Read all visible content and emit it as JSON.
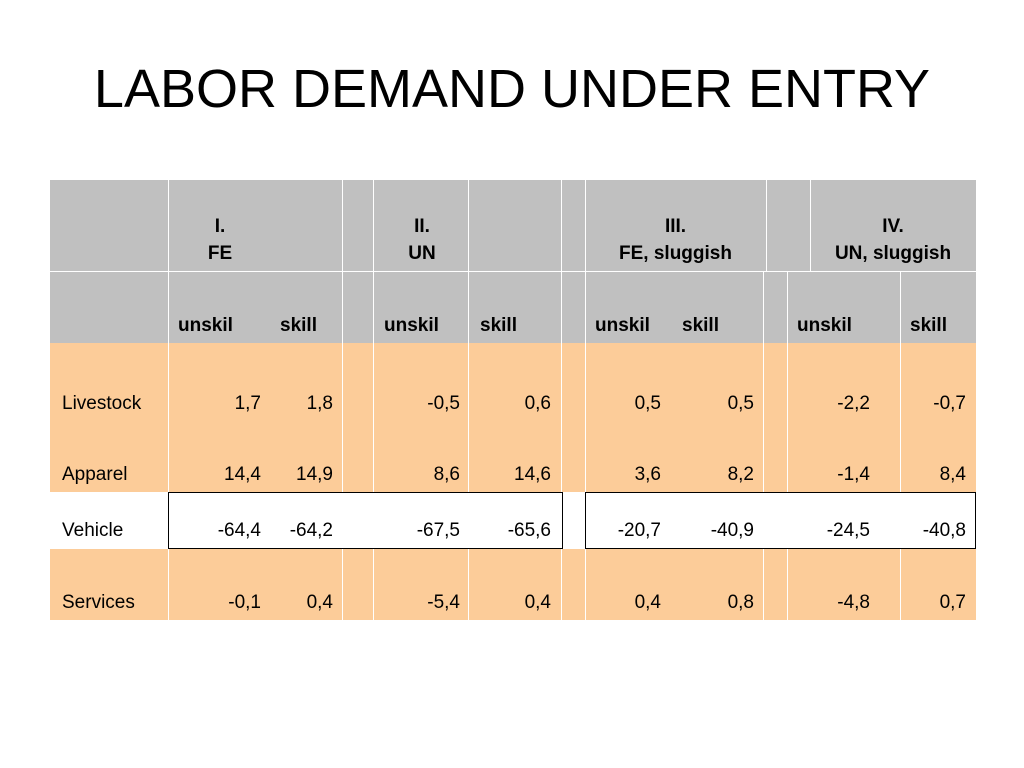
{
  "title": "LABOR DEMAND UNDER ENTRY",
  "groups": [
    {
      "line1": "I.",
      "line2": "FE"
    },
    {
      "line1": "II.",
      "line2": "UN"
    },
    {
      "line1": "III.",
      "line2": "FE, sluggish"
    },
    {
      "line1": "IV.",
      "line2": "UN, sluggish"
    }
  ],
  "subheaders": [
    "unskil",
    "skill",
    "unskil",
    "skill",
    "unskil",
    "skill",
    "unskil",
    "skill"
  ],
  "rows": [
    {
      "label": "Livestock",
      "values": [
        "1,7",
        "1,8",
        "-0,5",
        "0,6",
        "0,5",
        "0,5",
        "-2,2",
        "-0,7"
      ]
    },
    {
      "label": "Apparel",
      "values": [
        "14,4",
        "14,9",
        "8,6",
        "14,6",
        "3,6",
        "8,2",
        "-1,4",
        "8,4"
      ]
    },
    {
      "label": "Vehicle",
      "values": [
        "-64,4",
        "-64,2",
        "-67,5",
        "-65,6",
        "-20,7",
        "-40,9",
        "-24,5",
        "-40,8"
      ]
    },
    {
      "label": "Services",
      "values": [
        "-0,1",
        "0,4",
        "-5,4",
        "0,4",
        "0,4",
        "0,8",
        "-4,8",
        "0,7"
      ]
    }
  ],
  "colors": {
    "header": "#c0c0c0",
    "highlight": "#fccc99",
    "plain": "#ffffff"
  }
}
